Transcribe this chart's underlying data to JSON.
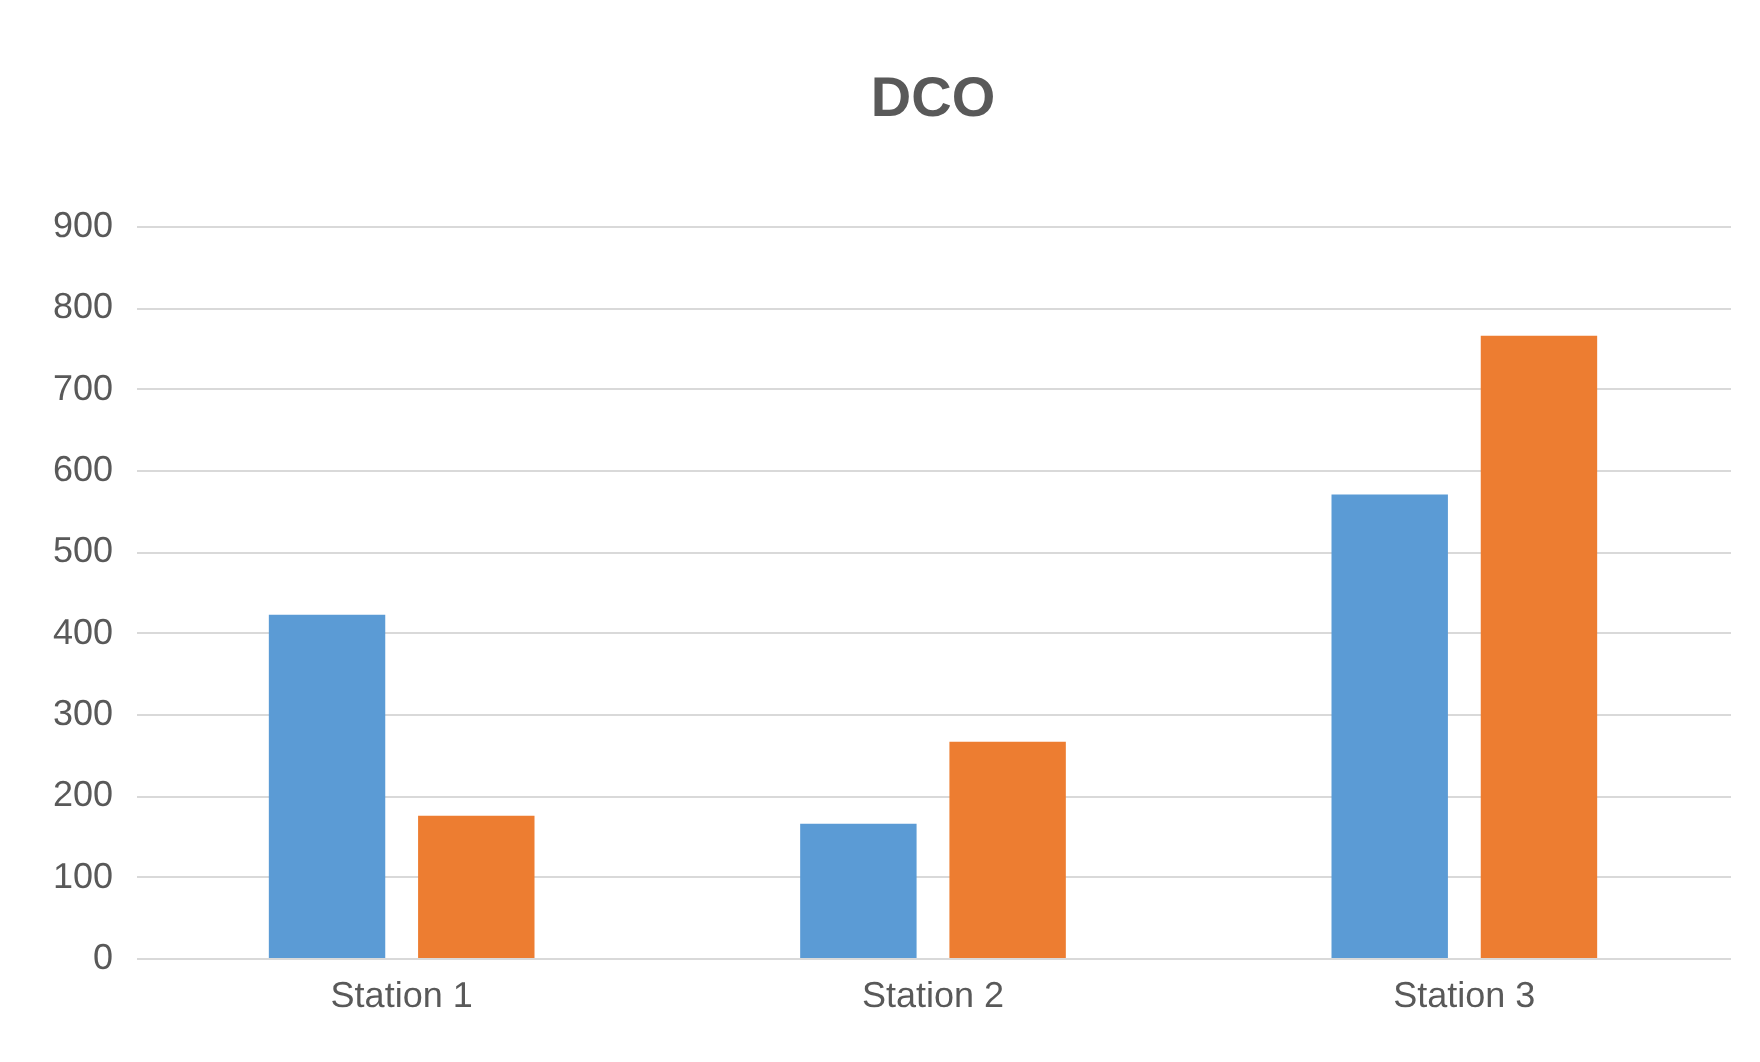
{
  "chart_data": {
    "type": "bar",
    "title": "DCO",
    "categories": [
      "Station 1",
      "Station 2",
      "Station 3"
    ],
    "series": [
      {
        "color": "#5b9bd5",
        "values": [
          422,
          165,
          570
        ]
      },
      {
        "color": "#ed7d31",
        "values": [
          175,
          266,
          765
        ]
      }
    ],
    "ylim": [
      0,
      900
    ],
    "yticks": [
      0,
      100,
      200,
      300,
      400,
      500,
      600,
      700,
      800,
      900
    ],
    "grid": "y",
    "legend": false
  }
}
